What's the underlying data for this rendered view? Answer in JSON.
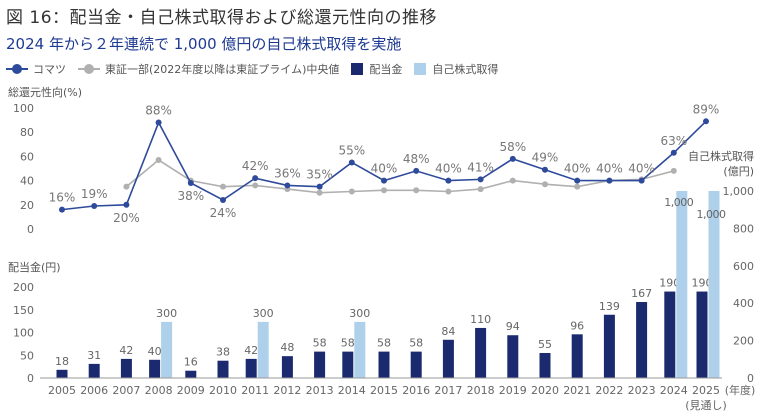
{
  "header": {
    "title": "図 16：配当金・自己株式取得および総還元性向の推移",
    "subtitle": "2024 年から２年連続で 1,000 億円の自己株式取得を実施"
  },
  "colors": {
    "komatsu": "#2e4a9a",
    "median": "#b0b0b0",
    "dividend": "#1b2a6e",
    "buyback": "#aed0ea",
    "subtitle": "#1f3a93"
  },
  "chart_data": [
    {
      "type": "line",
      "title": "総還元性向",
      "ylabel": "総還元性向(%)",
      "ylim": [
        0,
        100
      ],
      "yticks": [
        "0",
        "20",
        "40",
        "60",
        "80",
        "100"
      ],
      "ytick_values": [
        0,
        20,
        40,
        60,
        80,
        100
      ],
      "categories": [
        "2005",
        "2006",
        "2007",
        "2008",
        "2009",
        "2010",
        "2011",
        "2012",
        "2013",
        "2014",
        "2015",
        "2016",
        "2017",
        "2018",
        "2019",
        "2020",
        "2021",
        "2022",
        "2023",
        "2024",
        "2025"
      ],
      "series": [
        {
          "name": "コマツ",
          "values": [
            16,
            19,
            20,
            88,
            38,
            24,
            42,
            36,
            35,
            55,
            40,
            48,
            40,
            41,
            58,
            49,
            40,
            40,
            40,
            63,
            89
          ],
          "labels": [
            "16%",
            "19%",
            "20%",
            "88%",
            "38%",
            "24%",
            "42%",
            "36%",
            "35%",
            "55%",
            "40%",
            "48%",
            "40%",
            "41%",
            "58%",
            "49%",
            "40%",
            "40%",
            "40%",
            "63%",
            "89%"
          ]
        },
        {
          "name": "東証一部(2022年度以降は東証プライム)中央値",
          "values": [
            null,
            null,
            35,
            57,
            40,
            35,
            36,
            33,
            30,
            31,
            32,
            32,
            31,
            33,
            40,
            37,
            35,
            40,
            41,
            48,
            null
          ]
        }
      ],
      "grid": false,
      "legend": "top-left"
    },
    {
      "type": "bar",
      "title": "配当金・自己株式取得",
      "ylabel": "配当金(円)",
      "ylabel_right": "自己株式取得\n(億円)",
      "ylabel_right_lines": [
        "自己株式取得",
        "(億円)"
      ],
      "ylim": [
        0,
        200
      ],
      "ylim_right": [
        0,
        1000
      ],
      "yticks": [
        "0",
        "50",
        "100",
        "150",
        "200"
      ],
      "ytick_values": [
        0,
        50,
        100,
        150,
        200
      ],
      "yticks_right": [
        "0",
        "200",
        "400",
        "600",
        "800",
        "1,000"
      ],
      "ytick_values_right": [
        0,
        200,
        400,
        600,
        800,
        1000
      ],
      "categories": [
        "2005",
        "2006",
        "2007",
        "2008",
        "2009",
        "2010",
        "2011",
        "2012",
        "2013",
        "2014",
        "2015",
        "2016",
        "2017",
        "2018",
        "2019",
        "2020",
        "2021",
        "2022",
        "2023",
        "2024",
        "2025"
      ],
      "x_note": "(見通し)",
      "x_unit": "(年度)",
      "series": [
        {
          "name": "配当金",
          "axis": "left",
          "values": [
            18,
            31,
            42,
            40,
            16,
            38,
            42,
            48,
            58,
            58,
            58,
            58,
            84,
            110,
            94,
            55,
            96,
            139,
            167,
            190,
            190
          ],
          "labels": [
            "18",
            "31",
            "42",
            "40",
            "16",
            "38",
            "42",
            "48",
            "58",
            "58",
            "58",
            "58",
            "84",
            "110",
            "94",
            "55",
            "96",
            "139",
            "167",
            "190",
            "190"
          ]
        },
        {
          "name": "自己株式取得",
          "axis": "right",
          "values": [
            null,
            null,
            null,
            300,
            null,
            null,
            300,
            null,
            null,
            300,
            null,
            null,
            null,
            null,
            null,
            null,
            null,
            null,
            null,
            1000,
            1000
          ],
          "labels": [
            null,
            null,
            null,
            "300",
            null,
            null,
            "300",
            null,
            null,
            "300",
            null,
            null,
            null,
            null,
            null,
            null,
            null,
            null,
            null,
            "1,000",
            "1,000"
          ]
        }
      ],
      "grid": false
    }
  ]
}
